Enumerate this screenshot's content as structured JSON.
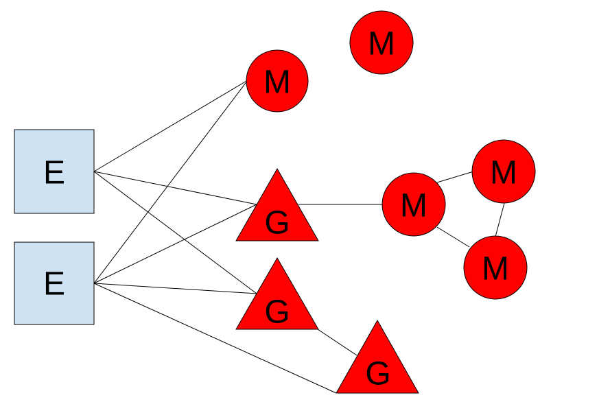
{
  "colors": {
    "entity_fill": "#cfe2f3",
    "node_fill": "#ff0000",
    "stroke": "#000000"
  },
  "nodes": {
    "e1": {
      "label": "E",
      "kind": "square"
    },
    "e2": {
      "label": "E",
      "kind": "square"
    },
    "g1": {
      "label": "G",
      "kind": "triangle"
    },
    "g2": {
      "label": "G",
      "kind": "triangle"
    },
    "g3": {
      "label": "G",
      "kind": "triangle"
    },
    "m1": {
      "label": "M",
      "kind": "circle"
    },
    "m2": {
      "label": "M",
      "kind": "circle"
    },
    "m3": {
      "label": "M",
      "kind": "circle"
    },
    "m4": {
      "label": "M",
      "kind": "circle"
    },
    "m5": {
      "label": "M",
      "kind": "circle"
    }
  },
  "edges": [
    {
      "from": "e1",
      "to": "m1"
    },
    {
      "from": "e1",
      "to": "g1"
    },
    {
      "from": "e1",
      "to": "g2"
    },
    {
      "from": "e2",
      "to": "m1"
    },
    {
      "from": "e2",
      "to": "g1"
    },
    {
      "from": "e2",
      "to": "g2"
    },
    {
      "from": "e2",
      "to": "g3"
    },
    {
      "from": "g2",
      "to": "g3"
    },
    {
      "from": "g1",
      "to": "m3"
    },
    {
      "from": "m3",
      "to": "m4"
    },
    {
      "from": "m3",
      "to": "m5"
    },
    {
      "from": "m4",
      "to": "m5"
    }
  ]
}
